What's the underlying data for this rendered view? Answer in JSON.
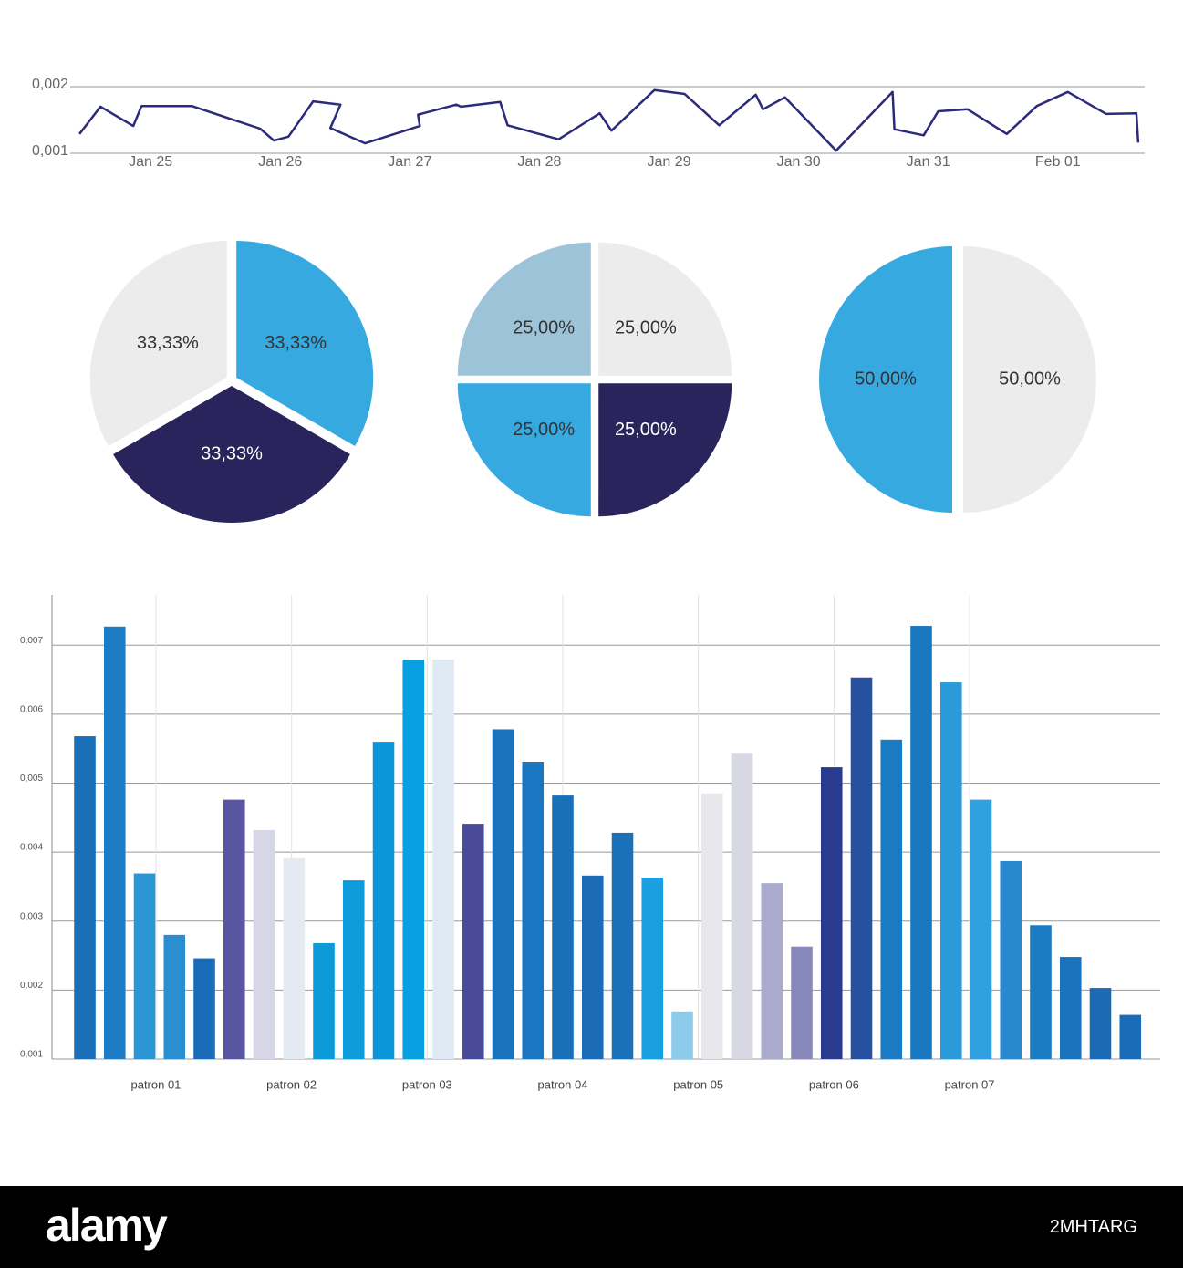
{
  "chart_data": [
    {
      "type": "line",
      "color": "#2c2a7a",
      "grid": true,
      "x": [
        24.451,
        24.613,
        24.866,
        24.93,
        25.317,
        25.845,
        25.951,
        26.063,
        26.254,
        26.465,
        26.387,
        26.655,
        27.077,
        27.063,
        27.359,
        27.394,
        27.697,
        27.754,
        28.148,
        28.465,
        28.556,
        28.887,
        29.12,
        29.387,
        29.669,
        29.725,
        29.894,
        30.289,
        30.725,
        30.739,
        30.965,
        31.077,
        31.303,
        31.606,
        31.838,
        32.077,
        32.373,
        32.606,
        32.62
      ],
      "values": [
        0.00129,
        0.0017,
        0.00141,
        0.00171,
        0.00171,
        0.00137,
        0.00119,
        0.00125,
        0.00178,
        0.00173,
        0.00138,
        0.00115,
        0.00141,
        0.00158,
        0.00173,
        0.0017,
        0.00177,
        0.00142,
        0.00121,
        0.0016,
        0.00134,
        0.00195,
        0.00189,
        0.00142,
        0.00188,
        0.00166,
        0.00184,
        0.00104,
        0.00192,
        0.00136,
        0.00127,
        0.00163,
        0.00166,
        0.00129,
        0.00171,
        0.00192,
        0.00159,
        0.0016,
        0.00116
      ],
      "xlim": [
        24.45,
        32.67
      ],
      "ylim": [
        0.001,
        0.002
      ],
      "xticks": [
        {
          "value": 25,
          "label": "Jan 25"
        },
        {
          "value": 26,
          "label": "Jan 26"
        },
        {
          "value": 27,
          "label": "Jan 27"
        },
        {
          "value": 28,
          "label": "Jan 28"
        },
        {
          "value": 29,
          "label": "Jan 29"
        },
        {
          "value": 30,
          "label": "Jan 30"
        },
        {
          "value": 31,
          "label": "Jan 31"
        },
        {
          "value": 32,
          "label": "Feb 01"
        }
      ],
      "yticks": [
        {
          "value": 0.001,
          "label": "0,001"
        },
        {
          "value": 0.002,
          "label": "0,002"
        }
      ]
    },
    {
      "type": "pie",
      "values": [
        33.33,
        33.33,
        33.33
      ],
      "value_labels": [
        "33,33%",
        "33,33%",
        "33,33%"
      ],
      "colors": [
        "#36a9e1",
        "#29245c",
        "#ececec"
      ]
    },
    {
      "type": "pie",
      "values": [
        25,
        25,
        25,
        25
      ],
      "value_labels": [
        "25,00%",
        "25,00%",
        "25,00%",
        "25,00%"
      ],
      "colors": [
        "#ececec",
        "#29245c",
        "#36a9e1",
        "#9cc3d8"
      ]
    },
    {
      "type": "pie",
      "values": [
        50,
        50
      ],
      "value_labels": [
        "50,00%",
        "50,00%"
      ],
      "colors": [
        "#ececec",
        "#36a9e1"
      ]
    },
    {
      "type": "bar",
      "grid": true,
      "x": [
        1,
        2,
        3,
        4,
        5,
        6,
        7,
        8,
        9,
        10,
        11,
        12,
        13,
        14,
        15,
        16,
        17,
        18,
        19,
        20,
        21,
        22,
        23,
        24,
        25,
        26,
        27,
        28,
        29,
        30,
        31,
        32,
        33,
        34,
        35,
        36
      ],
      "values": [
        0.00568,
        0.00727,
        0.00369,
        0.0028,
        0.00246,
        0.00476,
        0.00432,
        0.00391,
        0.00268,
        0.00359,
        0.0056,
        0.00679,
        0.00679,
        0.00441,
        0.00578,
        0.00531,
        0.00482,
        0.00366,
        0.00428,
        0.00363,
        0.00169,
        0.00485,
        0.00544,
        0.00355,
        0.00263,
        0.00523,
        0.00653,
        0.00563,
        0.00728,
        0.00646,
        0.00476,
        0.00387,
        0.00294,
        0.00248,
        0.00203,
        0.00164
      ],
      "colors": [
        "#1a6fb9",
        "#1d7cc4",
        "#2b95d6",
        "#2a8fd0",
        "#1a6cb8",
        "#5856a0",
        "#d6d6e6",
        "#e4eaf2",
        "#0c9ad9",
        "#0e9cdc",
        "#0a96d8",
        "#08a0e0",
        "#dfe9f4",
        "#4a4b98",
        "#1a72bd",
        "#1a76c0",
        "#1a6fb9",
        "#1b6bb6",
        "#1b70ba",
        "#1aa0e0",
        "#8ccbec",
        "#e8e8ec",
        "#d8d8e4",
        "#aaaacc",
        "#8888bb",
        "#2a3a90",
        "#2650a0",
        "#1a7ac2",
        "#1a78c0",
        "#2a9ad8",
        "#30a0e0",
        "#2a88cc",
        "#1a7ac2",
        "#1a72bd",
        "#1a6ab6",
        "#1a6cb8"
      ],
      "xlim": [
        -0.1,
        37
      ],
      "ylim": [
        0.001,
        0.00773
      ],
      "xticks": [
        {
          "value": 3.38,
          "label": "patron 01"
        },
        {
          "value": 7.92,
          "label": "patron 02"
        },
        {
          "value": 12.46,
          "label": "patron 03"
        },
        {
          "value": 17.0,
          "label": "patron 04"
        },
        {
          "value": 21.54,
          "label": "patron 05"
        },
        {
          "value": 26.08,
          "label": "patron 06"
        },
        {
          "value": 30.62,
          "label": "patron 07"
        }
      ],
      "yticks": [
        {
          "value": 0.001,
          "label": "0,001"
        },
        {
          "value": 0.002,
          "label": "0,002"
        },
        {
          "value": 0.003,
          "label": "0,003"
        },
        {
          "value": 0.004,
          "label": "0,004"
        },
        {
          "value": 0.005,
          "label": "0,005"
        },
        {
          "value": 0.006,
          "label": "0,006"
        },
        {
          "value": 0.007,
          "label": "0,007"
        }
      ]
    }
  ],
  "footer": {
    "brand": "alamy",
    "id": "2MHTARG"
  }
}
